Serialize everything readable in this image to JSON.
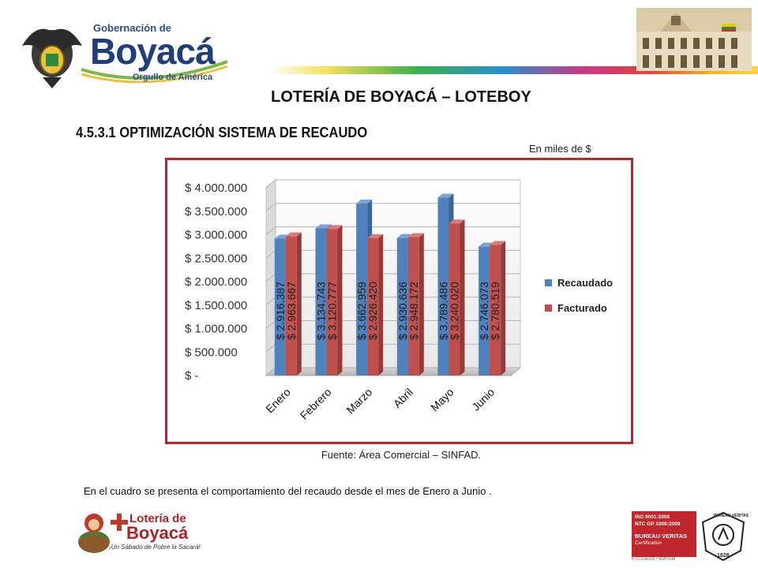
{
  "header": {
    "logo_small": "Gobernación de",
    "logo_main": "Boyacá",
    "logo_tagline": "Orgullo de América"
  },
  "title": "LOTERÍA  DE BOYACÁ – LOTEBOY",
  "section": "4.5.3.1 OPTIMIZACIÓN SISTEMA DE RECAUDO",
  "unit_note": "En miles de $",
  "source": "Fuente: Área Comercial – SINFAD.",
  "summary": "En el cuadro se presenta el comportamiento del recaudo desde el mes de Enero a Junio .",
  "footer": {
    "loteria_line1": "Lotería de",
    "loteria_line2": "Boyacá",
    "loteria_slogan": "¡Un Sábado de Pobre la Sacará!",
    "cert_line1": "ISO 9001:2008",
    "cert_line2": "NTC GP 1000:2009",
    "cert_line3": "BUREAU VERITAS",
    "cert_line4": "Certification",
    "cert_code": "N CO234309 / NGP0148",
    "cert_badge": "BUREAU VERITAS",
    "cert_year": "1828"
  },
  "colors": {
    "recaudado": "#4f81bd",
    "facturado": "#c0504d",
    "frame": "#c22026"
  },
  "chart_data": {
    "type": "bar",
    "categories": [
      "Enero",
      "Febrero",
      "Marzo",
      "Abril",
      "Mayo",
      "Junio"
    ],
    "series": [
      {
        "name": "Recaudado",
        "values": [
          2916387,
          3134743,
          3662959,
          2930636,
          3789486,
          2746073
        ],
        "labels": [
          "$ 2.916.387",
          "$ 3.134.743",
          "$ 3.662.959",
          "$ 2.930.636",
          "$ 3.789.486",
          "$ 2.746.073"
        ]
      },
      {
        "name": "Facturado",
        "values": [
          2963667,
          3120777,
          2926420,
          2948172,
          3240020,
          2780519
        ],
        "labels": [
          "$ 2.963.667",
          "$ 3.120.777",
          "$ 2.926.420",
          "$ 2.948.172",
          "$ 3.240.020",
          "$ 2.780.519"
        ]
      }
    ],
    "yticks": [
      "$ -",
      "$ 500.000",
      "$ 1.000.000",
      "$ 1.500.000",
      "$ 2.000.000",
      "$ 2.500.000",
      "$ 3.000.000",
      "$ 3.500.000",
      "$ 4.000.000"
    ],
    "ylim": [
      0,
      4000000
    ],
    "legend": "right",
    "grid": true,
    "style": "3d-clustered-bar"
  }
}
